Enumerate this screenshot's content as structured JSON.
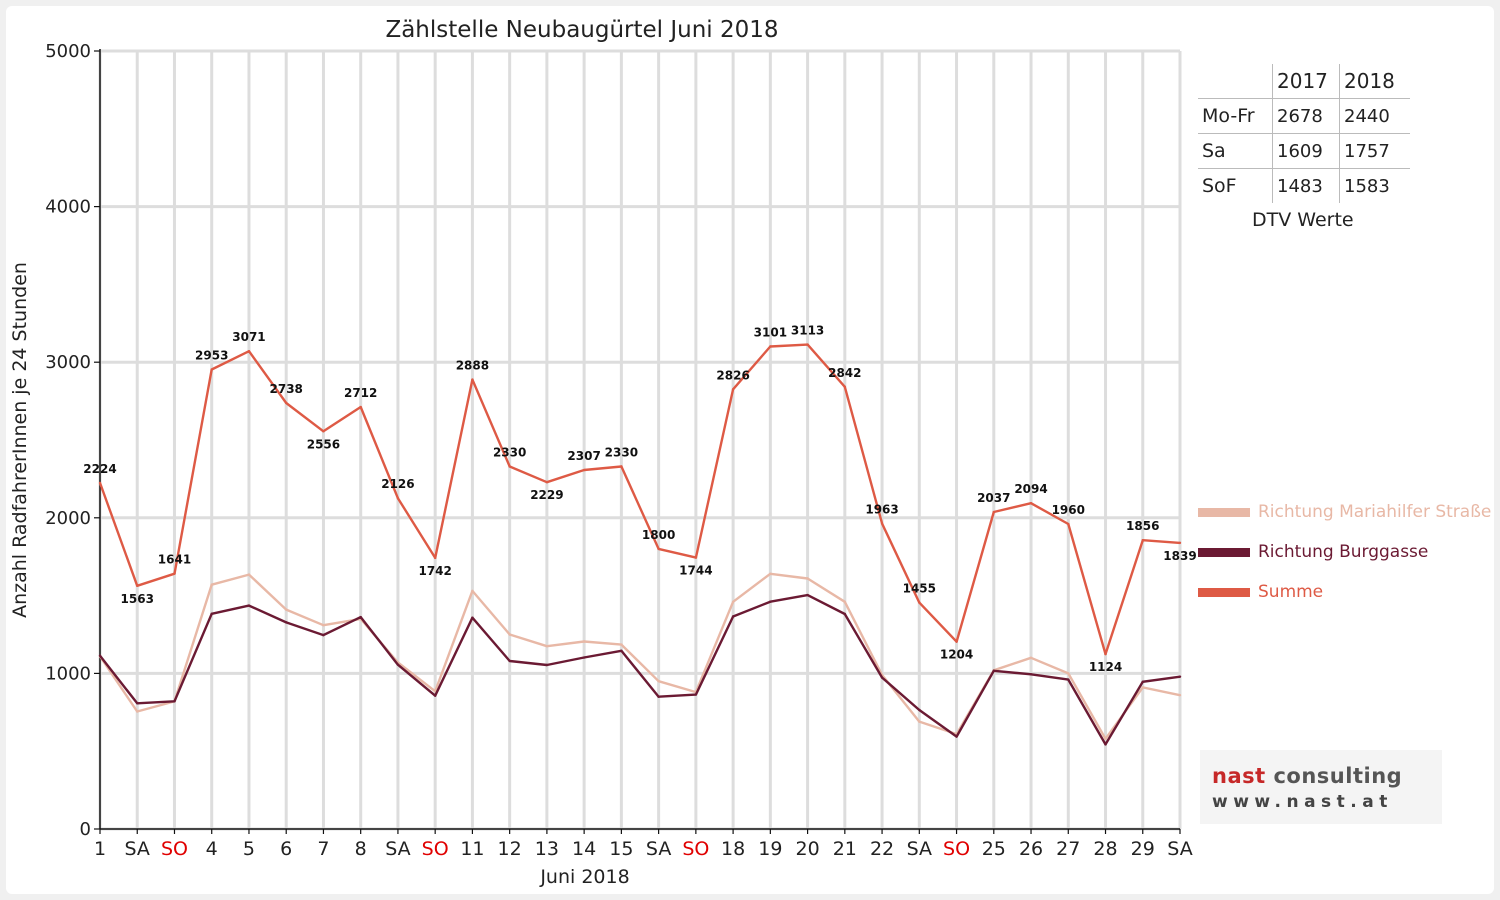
{
  "chart_data": {
    "type": "line",
    "title": "Zählstelle Neubaugürtel Juni 2018",
    "xlabel": "Juni 2018",
    "ylabel": "Anzahl RadfahrerInnen je 24 Stunden",
    "ylim": [
      0,
      5000
    ],
    "yticks": [
      0,
      1000,
      2000,
      3000,
      4000,
      5000
    ],
    "categories": [
      "1",
      "SA",
      "SO",
      "4",
      "5",
      "6",
      "7",
      "8",
      "SA",
      "SO",
      "11",
      "12",
      "13",
      "14",
      "15",
      "SA",
      "SO",
      "18",
      "19",
      "20",
      "21",
      "22",
      "SA",
      "SO",
      "25",
      "26",
      "27",
      "28",
      "29",
      "SA"
    ],
    "highlighted_categories": [
      2,
      9,
      16,
      23
    ],
    "grid": true,
    "legend_position": "right",
    "series": [
      {
        "name": "Richtung Mariahilfer Straße",
        "color": "#e8b8a6",
        "values": [
          1110,
          755,
          820,
          1570,
          1635,
          1410,
          1310,
          1350,
          1070,
          885,
          1530,
          1250,
          1175,
          1205,
          1185,
          950,
          880,
          1460,
          1640,
          1610,
          1460,
          990,
          690,
          610,
          1020,
          1100,
          1000,
          580,
          910,
          860
        ]
      },
      {
        "name": "Richtung Burggasse",
        "color": "#6b1a33",
        "values": [
          1114,
          808,
          821,
          1383,
          1436,
          1328,
          1246,
          1362,
          1056,
          857,
          1358,
          1080,
          1054,
          1102,
          1145,
          850,
          864,
          1366,
          1461,
          1503,
          1382,
          973,
          765,
          594,
          1017,
          994,
          960,
          544,
          946,
          979
        ]
      },
      {
        "name": "Summe",
        "color": "#de5a45",
        "values": [
          2224,
          1563,
          1641,
          2953,
          3071,
          2738,
          2556,
          2712,
          2126,
          1742,
          2888,
          2330,
          2229,
          2307,
          2330,
          1800,
          1744,
          2826,
          3101,
          3113,
          2842,
          1963,
          1455,
          1204,
          2037,
          2094,
          1960,
          1124,
          1856,
          1839
        ],
        "labels": [
          "2224",
          "1563",
          "1641",
          "2953",
          "3071",
          "2738",
          "2556",
          "2712",
          "2126",
          "1742",
          "2888",
          "2330",
          "2229",
          "2307",
          "2330",
          "1800",
          "1744",
          "2826",
          "3101",
          "3113",
          "2842",
          "1963",
          "1455",
          "1204",
          "2037",
          "2094",
          "1960",
          "1124",
          "1856",
          "1839"
        ]
      }
    ]
  },
  "dtv_table": {
    "headers": [
      "",
      "2017",
      "2018"
    ],
    "rows": [
      {
        "label": "Mo-Fr",
        "v2017": "2678",
        "v2018": "2440"
      },
      {
        "label": "Sa",
        "v2017": "1609",
        "v2018": "1757"
      },
      {
        "label": "SoF",
        "v2017": "1483",
        "v2018": "1583"
      }
    ],
    "caption": "DTV Werte"
  },
  "logo": {
    "name_part1": "nast",
    "name_part2": "consulting",
    "url": "www.nast.at",
    "accent_color": "#c62828"
  }
}
